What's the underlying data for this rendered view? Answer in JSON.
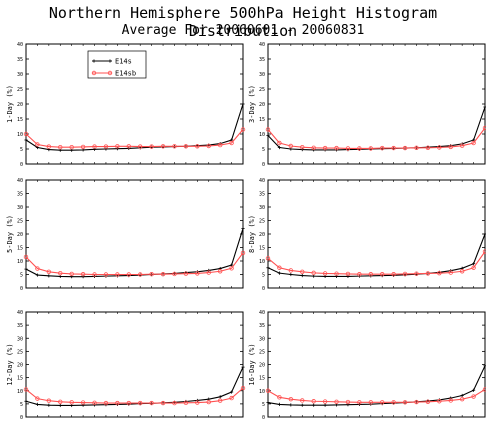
{
  "title": "Northern Hemisphere 500hPa Height Histogram Distribution",
  "subtitle": "Average For 20060601 - 20060831",
  "colors": {
    "E14s": "#000000",
    "E14sb": "#ff5050"
  },
  "chart_data": [
    {
      "type": "line",
      "ylabel": "1-Day (%)",
      "ylim": [
        0,
        40
      ],
      "yticks": [
        0,
        5,
        10,
        15,
        20,
        25,
        30,
        35,
        40
      ],
      "x": [
        1,
        2,
        3,
        4,
        5,
        6,
        7,
        8,
        9,
        10,
        11,
        12,
        13,
        14,
        15,
        16,
        17,
        18,
        19,
        20
      ],
      "legend": "top-left",
      "series": [
        {
          "name": "E14s",
          "marker": "plus",
          "values": [
            8,
            5.5,
            4.8,
            4.6,
            4.6,
            4.7,
            4.9,
            5.0,
            5.1,
            5.2,
            5.4,
            5.6,
            5.7,
            5.8,
            5.9,
            6.1,
            6.3,
            6.8,
            8,
            20
          ]
        },
        {
          "name": "E14sb",
          "marker": "circle",
          "values": [
            10,
            6.5,
            5.8,
            5.6,
            5.6,
            5.7,
            5.8,
            5.8,
            5.9,
            5.9,
            5.8,
            5.8,
            5.9,
            5.9,
            5.9,
            5.9,
            6.0,
            6.3,
            7,
            11.5
          ]
        }
      ]
    },
    {
      "type": "line",
      "ylabel": "3-Day (%)",
      "ylim": [
        0,
        40
      ],
      "yticks": [
        0,
        5,
        10,
        15,
        20,
        25,
        30,
        35,
        40
      ],
      "x": [
        1,
        2,
        3,
        4,
        5,
        6,
        7,
        8,
        9,
        10,
        11,
        12,
        13,
        14,
        15,
        16,
        17,
        18,
        19,
        20
      ],
      "series": [
        {
          "name": "E14s",
          "marker": "plus",
          "values": [
            9.5,
            5.5,
            5.0,
            4.8,
            4.7,
            4.7,
            4.7,
            4.8,
            4.9,
            5.0,
            5.1,
            5.2,
            5.3,
            5.4,
            5.6,
            5.8,
            6.1,
            6.7,
            8,
            19
          ]
        },
        {
          "name": "E14sb",
          "marker": "circle",
          "values": [
            11.5,
            7.0,
            6.0,
            5.6,
            5.4,
            5.3,
            5.3,
            5.2,
            5.2,
            5.2,
            5.3,
            5.3,
            5.3,
            5.4,
            5.4,
            5.5,
            5.7,
            6.1,
            7,
            12
          ]
        }
      ]
    },
    {
      "type": "line",
      "ylabel": "5-Day (%)",
      "ylim": [
        0,
        40
      ],
      "yticks": [
        0,
        5,
        10,
        15,
        20,
        25,
        30,
        35,
        40
      ],
      "x": [
        1,
        2,
        3,
        4,
        5,
        6,
        7,
        8,
        9,
        10,
        11,
        12,
        13,
        14,
        15,
        16,
        17,
        18,
        19,
        20
      ],
      "series": [
        {
          "name": "E14s",
          "marker": "plus",
          "values": [
            7,
            4.8,
            4.5,
            4.3,
            4.2,
            4.2,
            4.3,
            4.4,
            4.5,
            4.6,
            4.8,
            5.0,
            5.2,
            5.4,
            5.7,
            6.0,
            6.5,
            7.2,
            8.5,
            22
          ]
        },
        {
          "name": "E14sb",
          "marker": "circle",
          "values": [
            11.5,
            7.2,
            6.0,
            5.5,
            5.2,
            5.1,
            5.0,
            5.0,
            5.0,
            5.0,
            5.0,
            5.1,
            5.1,
            5.2,
            5.3,
            5.4,
            5.7,
            6.2,
            7.3,
            13
          ]
        }
      ]
    },
    {
      "type": "line",
      "ylabel": "8-Day (%)",
      "ylim": [
        0,
        40
      ],
      "yticks": [
        0,
        5,
        10,
        15,
        20,
        25,
        30,
        35,
        40
      ],
      "x": [
        1,
        2,
        3,
        4,
        5,
        6,
        7,
        8,
        9,
        10,
        11,
        12,
        13,
        14,
        15,
        16,
        17,
        18,
        19,
        20
      ],
      "series": [
        {
          "name": "E14s",
          "marker": "plus",
          "values": [
            7.5,
            5.5,
            5.0,
            4.6,
            4.4,
            4.3,
            4.3,
            4.3,
            4.4,
            4.5,
            4.6,
            4.7,
            4.9,
            5.1,
            5.4,
            5.8,
            6.4,
            7.3,
            9,
            20
          ]
        },
        {
          "name": "E14sb",
          "marker": "circle",
          "values": [
            11,
            7.5,
            6.5,
            6.0,
            5.6,
            5.4,
            5.3,
            5.2,
            5.1,
            5.1,
            5.1,
            5.1,
            5.2,
            5.3,
            5.4,
            5.5,
            5.7,
            6.2,
            7.5,
            13.5
          ]
        }
      ]
    },
    {
      "type": "line",
      "ylabel": "12-Day (%)",
      "ylim": [
        0,
        40
      ],
      "yticks": [
        0,
        5,
        10,
        15,
        20,
        25,
        30,
        35,
        40
      ],
      "x": [
        1,
        2,
        3,
        4,
        5,
        6,
        7,
        8,
        9,
        10,
        11,
        12,
        13,
        14,
        15,
        16,
        17,
        18,
        19,
        20
      ],
      "series": [
        {
          "name": "E14s",
          "marker": "plus",
          "values": [
            6,
            4.8,
            4.5,
            4.4,
            4.4,
            4.5,
            4.6,
            4.7,
            4.8,
            4.9,
            5.1,
            5.2,
            5.4,
            5.6,
            5.9,
            6.3,
            6.8,
            7.7,
            9.5,
            19
          ]
        },
        {
          "name": "E14sb",
          "marker": "circle",
          "values": [
            10.5,
            7.0,
            6.2,
            5.8,
            5.6,
            5.5,
            5.4,
            5.3,
            5.3,
            5.3,
            5.3,
            5.3,
            5.3,
            5.3,
            5.4,
            5.5,
            5.7,
            6.2,
            7.2,
            11
          ]
        }
      ]
    },
    {
      "type": "line",
      "ylabel": "16-Day (%)",
      "ylim": [
        0,
        40
      ],
      "yticks": [
        0,
        5,
        10,
        15,
        20,
        25,
        30,
        35,
        40
      ],
      "x": [
        1,
        2,
        3,
        4,
        5,
        6,
        7,
        8,
        9,
        10,
        11,
        12,
        13,
        14,
        15,
        16,
        17,
        18,
        19,
        20
      ],
      "series": [
        {
          "name": "E14s",
          "marker": "plus",
          "values": [
            5.5,
            4.8,
            4.6,
            4.5,
            4.5,
            4.5,
            4.6,
            4.7,
            4.8,
            4.9,
            5.1,
            5.3,
            5.5,
            5.8,
            6.1,
            6.5,
            7.2,
            8.2,
            10.2,
            19.5
          ]
        },
        {
          "name": "E14sb",
          "marker": "circle",
          "values": [
            10,
            7.5,
            6.8,
            6.3,
            6.0,
            5.9,
            5.8,
            5.7,
            5.6,
            5.6,
            5.6,
            5.6,
            5.6,
            5.7,
            5.8,
            6.0,
            6.3,
            6.8,
            7.8,
            10.5
          ]
        }
      ]
    }
  ]
}
